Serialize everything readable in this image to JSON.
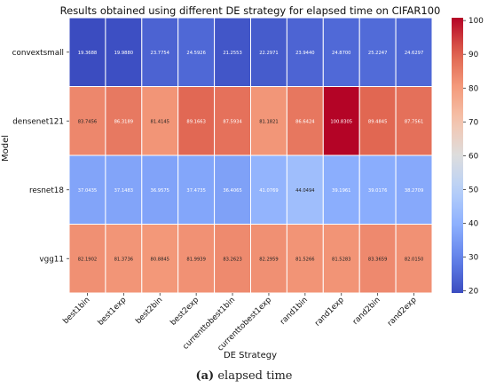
{
  "chart_data": {
    "type": "heatmap",
    "title": "Results obtained using different DE strategy for elapsed time on CIFAR100",
    "xlabel": "DE Strategy",
    "ylabel": "Model",
    "x_categories": [
      "best1bin",
      "best1exp",
      "best2bin",
      "best2exp",
      "currenttobest1bin",
      "currenttobest1exp",
      "rand1bin",
      "rand1exp",
      "rand2bin",
      "rand2exp"
    ],
    "y_categories": [
      "convextsmall",
      "densenet121",
      "resnet18",
      "vgg11"
    ],
    "values": [
      [
        19.3688,
        19.988,
        23.7754,
        24.5926,
        21.2553,
        22.2971,
        23.944,
        24.87,
        25.2247,
        24.6297
      ],
      [
        83.7456,
        86.3189,
        81.4145,
        89.1663,
        87.5934,
        81.1821,
        86.6424,
        100.8305,
        89.4845,
        87.7561
      ],
      [
        37.0435,
        37.1483,
        36.9575,
        37.4735,
        36.4065,
        41.0769,
        44.0494,
        39.1961,
        39.0176,
        38.2709
      ],
      [
        82.1902,
        81.3736,
        80.8845,
        81.9939,
        83.2623,
        82.2959,
        81.5266,
        81.5283,
        83.3659,
        82.015
      ]
    ],
    "value_labels": [
      [
        "19.3688",
        "19.9880",
        "23.7754",
        "24.5926",
        "21.2553",
        "22.2971",
        "23.9440",
        "24.8700",
        "25.2247",
        "24.6297"
      ],
      [
        "83.7456",
        "86.3189",
        "81.4145",
        "89.1663",
        "87.5934",
        "81.1821",
        "86.6424",
        "100.8305",
        "89.4845",
        "87.7561"
      ],
      [
        "37.0435",
        "37.1483",
        "36.9575",
        "37.4735",
        "36.4065",
        "41.0769",
        "44.0494",
        "39.1961",
        "39.0176",
        "38.2709"
      ],
      [
        "82.1902",
        "81.3736",
        "80.8845",
        "81.9939",
        "83.2623",
        "82.2959",
        "81.5266",
        "81.5283",
        "83.3659",
        "82.0150"
      ]
    ],
    "colorbar": {
      "ticks": [
        20,
        30,
        40,
        50,
        60,
        70,
        80,
        90,
        100
      ],
      "range": [
        19.3688,
        100.8305
      ],
      "colormap": "coolwarm"
    }
  },
  "caption": {
    "label": "(a)",
    "text": "elapsed time"
  }
}
